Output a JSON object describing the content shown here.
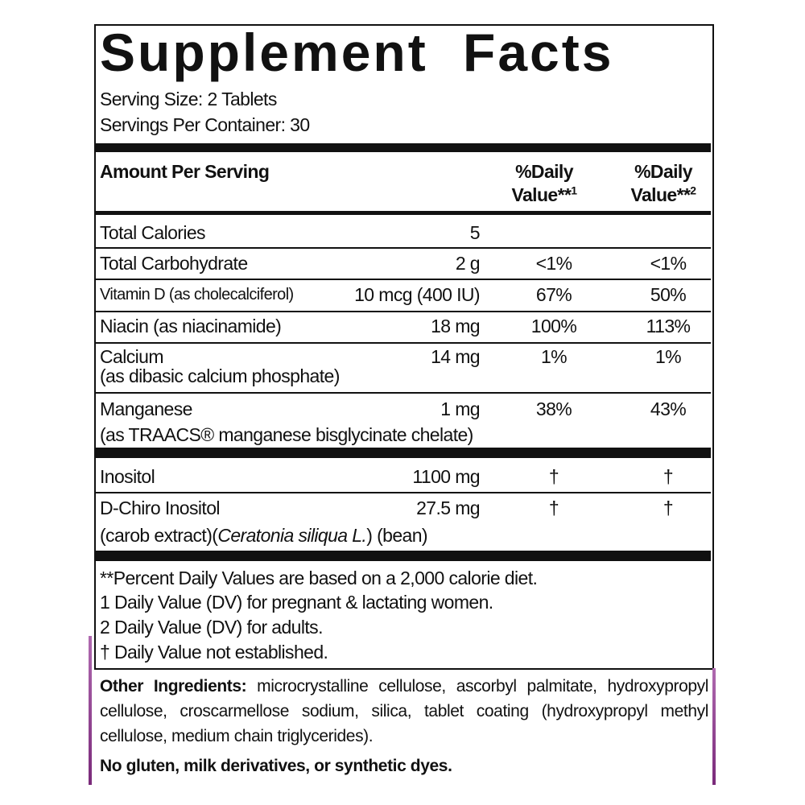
{
  "title": "Supplement Facts",
  "serving_size": "Serving Size: 2 Tablets",
  "servings_per_container": "Servings Per Container: 30",
  "header": {
    "amount": "Amount Per Serving",
    "dv1": {
      "line1": "%Daily",
      "line2": "Value**",
      "sup": "1"
    },
    "dv2": {
      "line1": "%Daily",
      "line2": "Value**",
      "sup": "2"
    }
  },
  "rows": [
    {
      "name": "Total Calories",
      "amount": "5"
    },
    {
      "name": "Total Carbohydrate",
      "amount": "2 g",
      "dv1": "<1%",
      "dv2": "<1%"
    },
    {
      "name": "Vitamin D (as cholecalciferol)",
      "amount": "10 mcg (400 IU)",
      "dv1": "67%",
      "dv2": "50%"
    },
    {
      "name": "Niacin (as niacinamide)",
      "amount": "18 mg",
      "dv1": "100%",
      "dv2": "113%"
    },
    {
      "name": "Calcium",
      "sub": "(as dibasic calcium phosphate)",
      "amount": "14 mg",
      "dv1": "1%",
      "dv2": "1%"
    },
    {
      "name": "Manganese",
      "sub": "(as TRAACS® manganese bisglycinate chelate)",
      "amount": "1 mg",
      "dv1": "38%",
      "dv2": "43%"
    },
    {
      "name": "Inositol",
      "amount": "1100 mg",
      "dv1": "†",
      "dv2": "†"
    },
    {
      "name": "D-Chiro Inositol",
      "sub_parts": [
        "(carob extract)(",
        "Ceratonia siliqua L.",
        ") (bean)"
      ],
      "amount": "27.5 mg",
      "dv1": "†",
      "dv2": "†"
    }
  ],
  "footnotes": [
    "**Percent Daily Values are based on a 2,000 calorie diet.",
    "1 Daily Value (DV) for pregnant & lactating women.",
    "2 Daily Value (DV) for adults.",
    "† Daily Value not established."
  ],
  "other_ingredients": {
    "label": "Other Ingredients:",
    "text": "microcrystalline cellulose, ascorbyl palmitate, hydroxypropyl cellulose, croscarmellose sodium, silica, tablet coating (hydroxypropyl methyl cellulose, medium chain triglycerides)."
  },
  "note": "No gluten, milk derivatives, or synthetic dyes."
}
